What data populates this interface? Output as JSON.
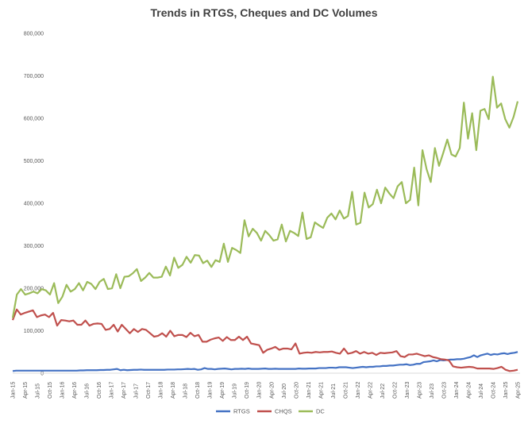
{
  "chart_data": {
    "type": "line",
    "title": "Trends in RTGS, Cheques and DC Volumes",
    "ylim": [
      0,
      800000
    ],
    "yticks": [
      "0",
      "100,000",
      "200,000",
      "300,000",
      "400,000",
      "500,000",
      "600,000",
      "700,000",
      "800,000"
    ],
    "grid": false,
    "legend_position": "bottom",
    "x_labels": [
      "Jan-15",
      "Apr-15",
      "Jul-15",
      "Oct-15",
      "Jan-16",
      "Apr-16",
      "Jul-16",
      "Oct-16",
      "Jan-17",
      "Apr-17",
      "Jul-17",
      "Oct-17",
      "Jan-18",
      "Apr-18",
      "Jul-18",
      "Oct-18",
      "Jan-19",
      "Apr-19",
      "Jul-19",
      "Oct-19",
      "Jan-20",
      "Apr-20",
      "Jul-20",
      "Oct-20",
      "Jan-21",
      "Apr-21",
      "Jul-21",
      "Oct-21",
      "Jan-22",
      "Apr-22",
      "Jul-22",
      "Oct-22",
      "Jan-23",
      "Apr-23",
      "Jul-23",
      "Oct-23",
      "Jan-24",
      "Apr-24",
      "Jul-24",
      "Oct-24",
      "Jan-25",
      "Apr-25"
    ],
    "series": [
      {
        "name": "RTGS",
        "color": "#4472C4",
        "values": [
          5000,
          6000,
          6000,
          6000,
          6000,
          6000,
          6000,
          6000,
          6000,
          6000,
          6000,
          6000,
          6000,
          6000,
          6000,
          6000,
          6000,
          6000,
          6000,
          6000,
          6500,
          6500,
          7000,
          7000,
          7000,
          7000,
          7500,
          7500,
          8000,
          8000,
          9000,
          10000,
          7000,
          8000,
          7000,
          7500,
          8000,
          8000,
          8500,
          8000,
          8000,
          8000,
          8000,
          8000,
          8000,
          8000,
          8500,
          8500,
          8500,
          9000,
          9000,
          9500,
          10000,
          9500,
          10000,
          8000,
          9000,
          12000,
          10000,
          10000,
          9000,
          10000,
          10500,
          11000,
          10000,
          9000,
          10000,
          10000,
          10500,
          10000,
          11000,
          10000,
          10000,
          10000,
          10500,
          11000,
          10000,
          10000,
          10500,
          10000,
          10000,
          10000,
          10000,
          10000,
          10000,
          11000,
          10500,
          10500,
          11000,
          11000,
          11000,
          12000,
          12000,
          12000,
          13000,
          13000,
          12500,
          14000,
          14000,
          14000,
          13000,
          12000,
          13000,
          14000,
          15000,
          14000,
          15000,
          15000,
          16000,
          16000,
          17000,
          17000,
          18000,
          18000,
          19000,
          20000,
          20000,
          21000,
          19000,
          20000,
          22000,
          22000,
          26000,
          27000,
          28000,
          30000,
          28000,
          31000,
          30000,
          31000,
          32000,
          32000,
          33000,
          33000,
          34000,
          36000,
          38000,
          42000,
          38000,
          42000,
          44000,
          46000,
          43000,
          45000,
          44000,
          46000,
          47000,
          45000,
          47000,
          48000,
          50000
        ]
      },
      {
        "name": "CHQS",
        "color": "#C0504D",
        "values": [
          125000,
          150000,
          138000,
          142000,
          145000,
          148000,
          132000,
          136000,
          138000,
          132000,
          142000,
          112000,
          125000,
          124000,
          122000,
          124000,
          114000,
          114000,
          124000,
          112000,
          116000,
          117000,
          116000,
          102000,
          104000,
          114000,
          98000,
          114000,
          104000,
          94000,
          104000,
          97000,
          104000,
          102000,
          94000,
          86000,
          88000,
          94000,
          86000,
          100000,
          87000,
          90000,
          90000,
          85000,
          95000,
          87000,
          90000,
          74000,
          74000,
          79000,
          82000,
          84000,
          76000,
          85000,
          78000,
          78000,
          86000,
          78000,
          86000,
          70000,
          68000,
          66000,
          48000,
          55000,
          58000,
          62000,
          55000,
          58000,
          58000,
          56000,
          70000,
          46000,
          48000,
          49000,
          48000,
          50000,
          49000,
          50000,
          50000,
          51000,
          48000,
          46000,
          58000,
          46000,
          48000,
          52000,
          46000,
          50000,
          46000,
          48000,
          43000,
          48000,
          47000,
          48000,
          49000,
          52000,
          40000,
          38000,
          44000,
          44000,
          46000,
          43000,
          40000,
          42000,
          38000,
          36000,
          33000,
          32000,
          30000,
          16000,
          14000,
          13000,
          14000,
          15000,
          14000,
          11000,
          11000,
          11000,
          11000,
          10000,
          12000,
          15000,
          8000,
          5000,
          6000,
          8000
        ],
        "x_start_index": 0
      },
      {
        "name": "DC",
        "color": "#9BBB59",
        "values": [
          130000,
          185000,
          198000,
          185000,
          188000,
          192000,
          188000,
          198000,
          195000,
          185000,
          212000,
          165000,
          180000,
          208000,
          192000,
          198000,
          212000,
          195000,
          215000,
          210000,
          198000,
          215000,
          222000,
          198000,
          200000,
          233000,
          200000,
          227000,
          228000,
          235000,
          245000,
          217000,
          225000,
          236000,
          225000,
          225000,
          227000,
          251000,
          230000,
          272000,
          248000,
          255000,
          274000,
          260000,
          278000,
          277000,
          259000,
          265000,
          250000,
          266000,
          262000,
          305000,
          262000,
          295000,
          290000,
          283000,
          360000,
          322000,
          340000,
          330000,
          312000,
          335000,
          325000,
          312000,
          315000,
          350000,
          310000,
          335000,
          330000,
          323000,
          378000,
          316000,
          320000,
          355000,
          348000,
          342000,
          366000,
          376000,
          362000,
          383000,
          364000,
          370000,
          427000,
          350000,
          354000,
          425000,
          390000,
          398000,
          432000,
          400000,
          437000,
          423000,
          412000,
          440000,
          450000,
          400000,
          408000,
          484000,
          395000,
          525000,
          480000,
          450000,
          530000,
          488000,
          518000,
          550000,
          515000,
          510000,
          530000,
          637000,
          552000,
          612000,
          525000,
          618000,
          622000,
          598000,
          698000,
          625000,
          635000,
          598000,
          578000,
          603000,
          640000
        ],
        "x_start_index": 0
      }
    ]
  }
}
